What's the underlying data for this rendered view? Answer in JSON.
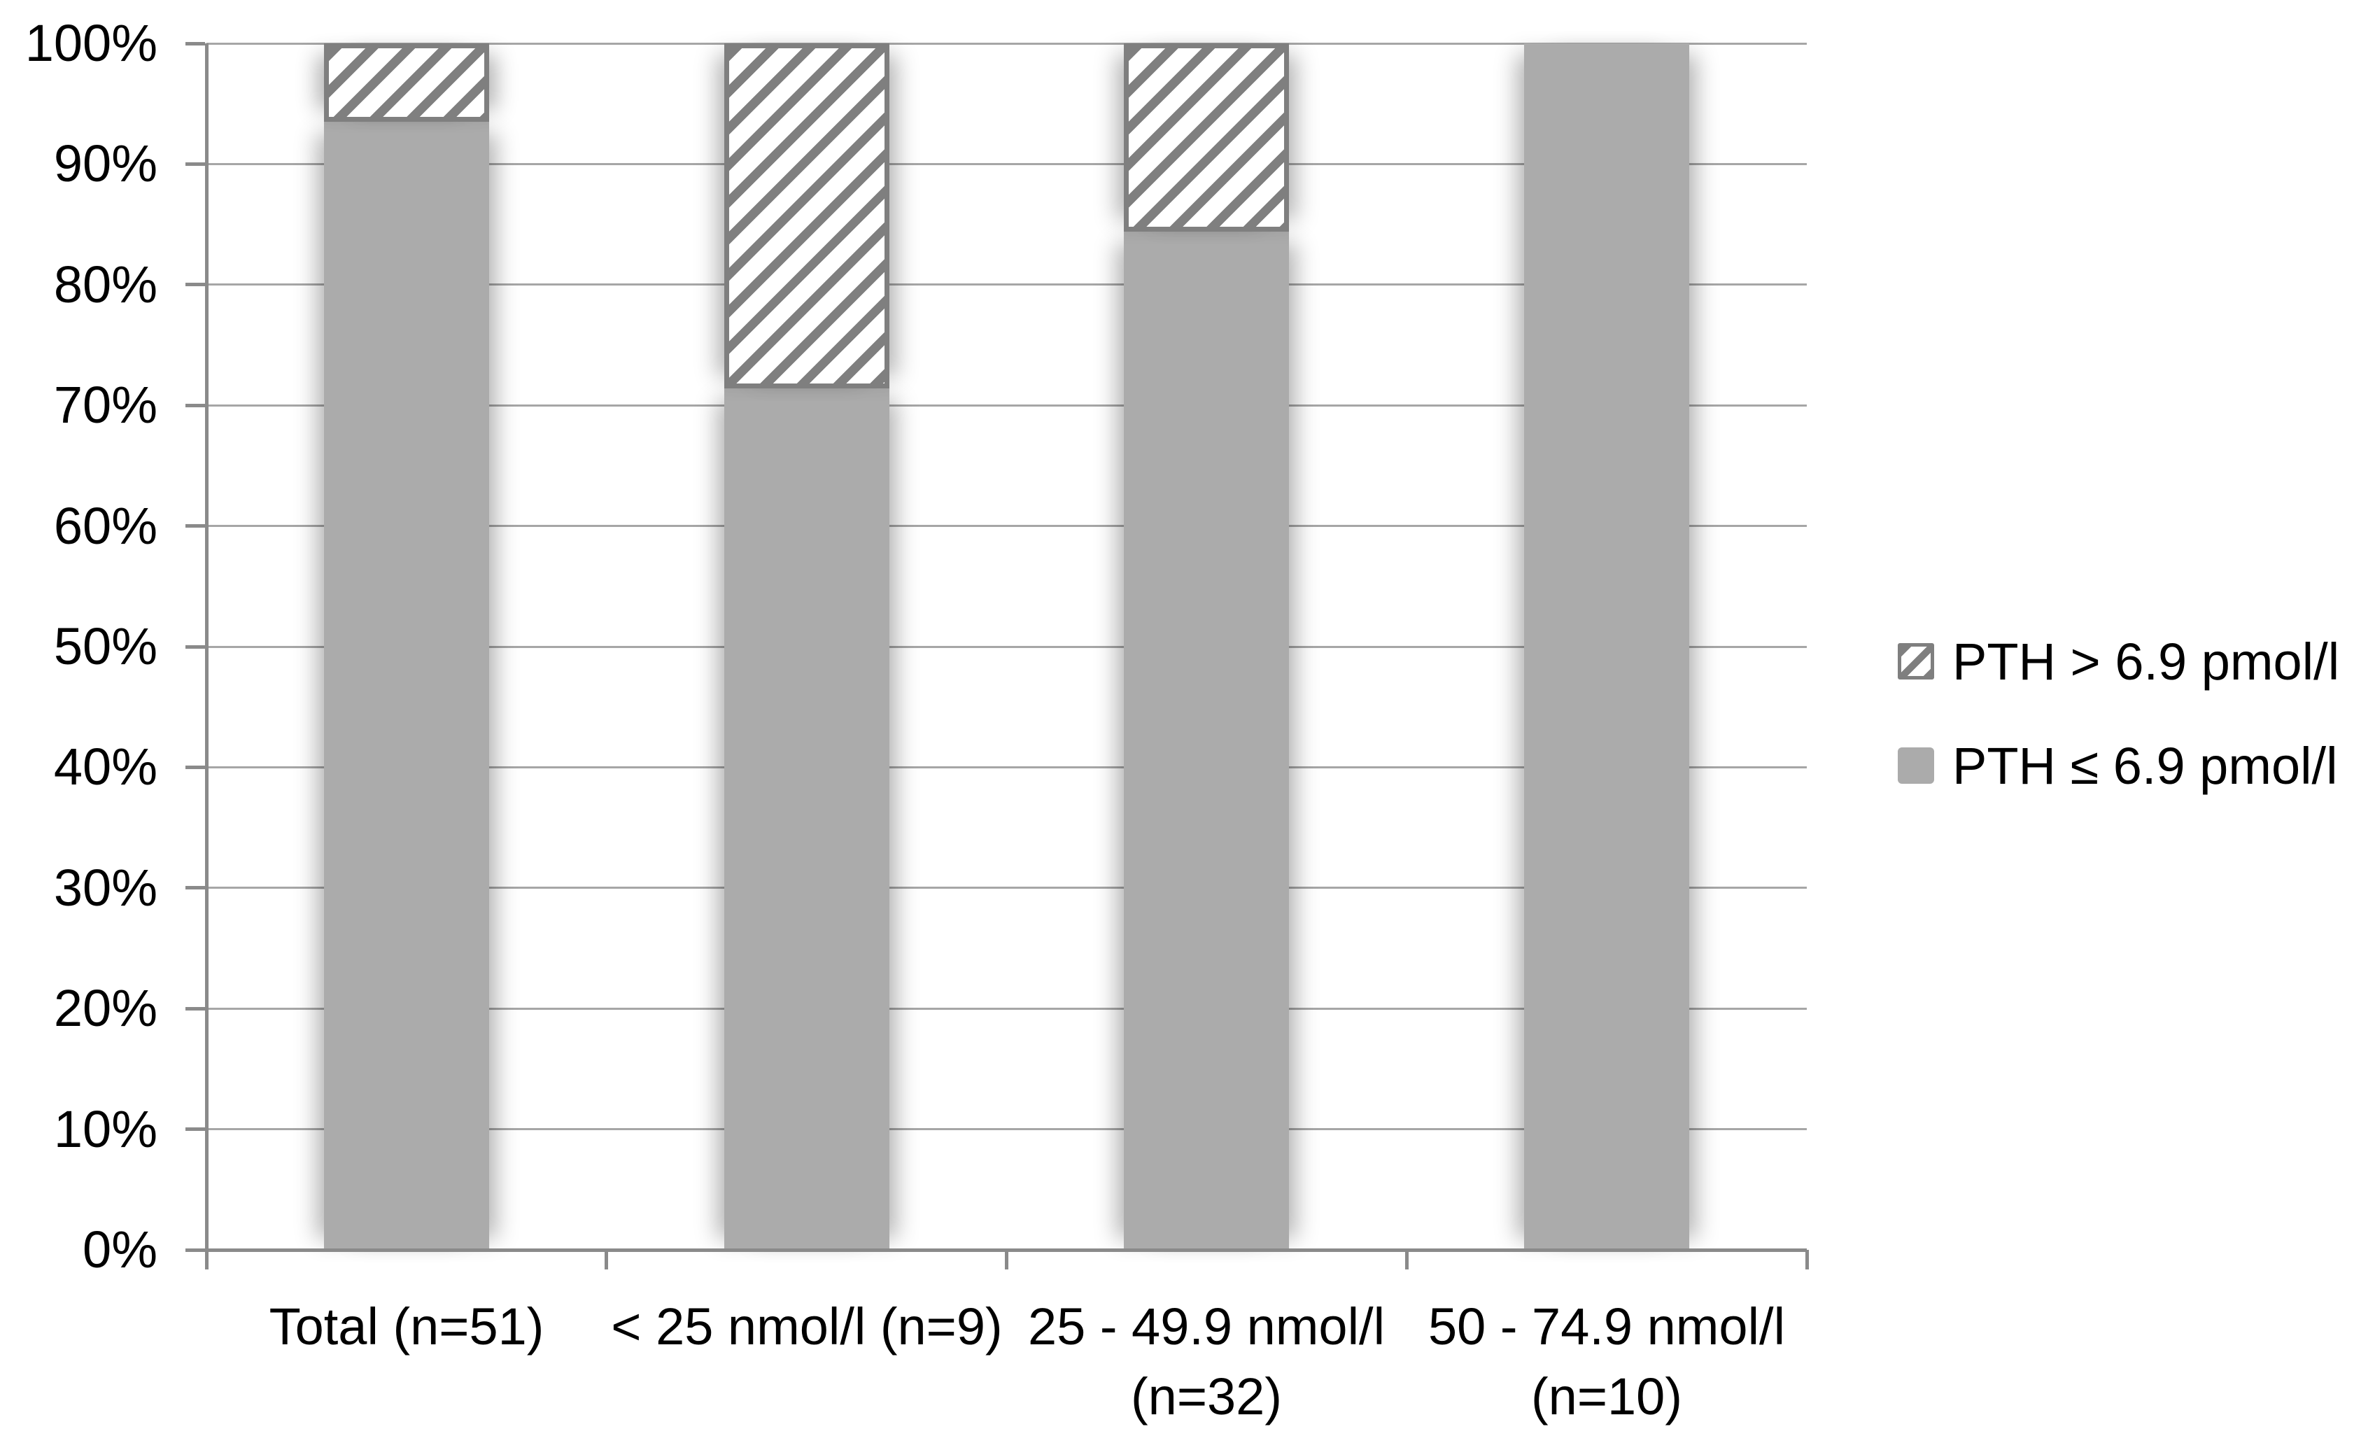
{
  "chart_data": {
    "type": "bar",
    "subtype": "stacked-100",
    "title": "",
    "xlabel": "",
    "ylabel": "",
    "ylim": [
      0,
      100
    ],
    "grid": true,
    "legend_position": "right",
    "y_tick_labels": [
      "0%",
      "10%",
      "20%",
      "30%",
      "40%",
      "50%",
      "60%",
      "70%",
      "80%",
      "90%",
      "100%"
    ],
    "categories": [
      "Total (n=51)",
      "< 25 nmol/l (n=9)",
      "25 - 49.9 nmol/l (n=32)",
      "50 - 74.9 nmol/l (n=10)"
    ],
    "category_label_lines": [
      [
        "Total (n=51)"
      ],
      [
        "< 25 nmol/l (n=9)"
      ],
      [
        "25 - 49.9 nmol/l",
        "(n=32)"
      ],
      [
        "50 - 74.9 nmol/l",
        "(n=10)"
      ]
    ],
    "series": [
      {
        "name": "PTH ≤ 6.9 pmol/l",
        "style": "solid",
        "values": [
          93.5,
          71.4,
          84.4,
          100
        ]
      },
      {
        "name": "PTH > 6.9 pmol/l",
        "style": "hatched",
        "values": [
          6.5,
          28.6,
          15.6,
          0
        ]
      }
    ]
  },
  "legend": {
    "items": [
      {
        "label": "PTH > 6.9 pmol/l",
        "swatch": "hatched"
      },
      {
        "label": "PTH ≤ 6.9 pmol/l",
        "swatch": "solid"
      }
    ]
  },
  "colors": {
    "background": "#ffffff",
    "bar_fill": "#ababab",
    "hatch_stroke": "#7f7f7f",
    "segment_border": "#7f7f7f",
    "gridline": "#a6a6a6",
    "axis": "#8a8a8a",
    "text": "#000000"
  }
}
